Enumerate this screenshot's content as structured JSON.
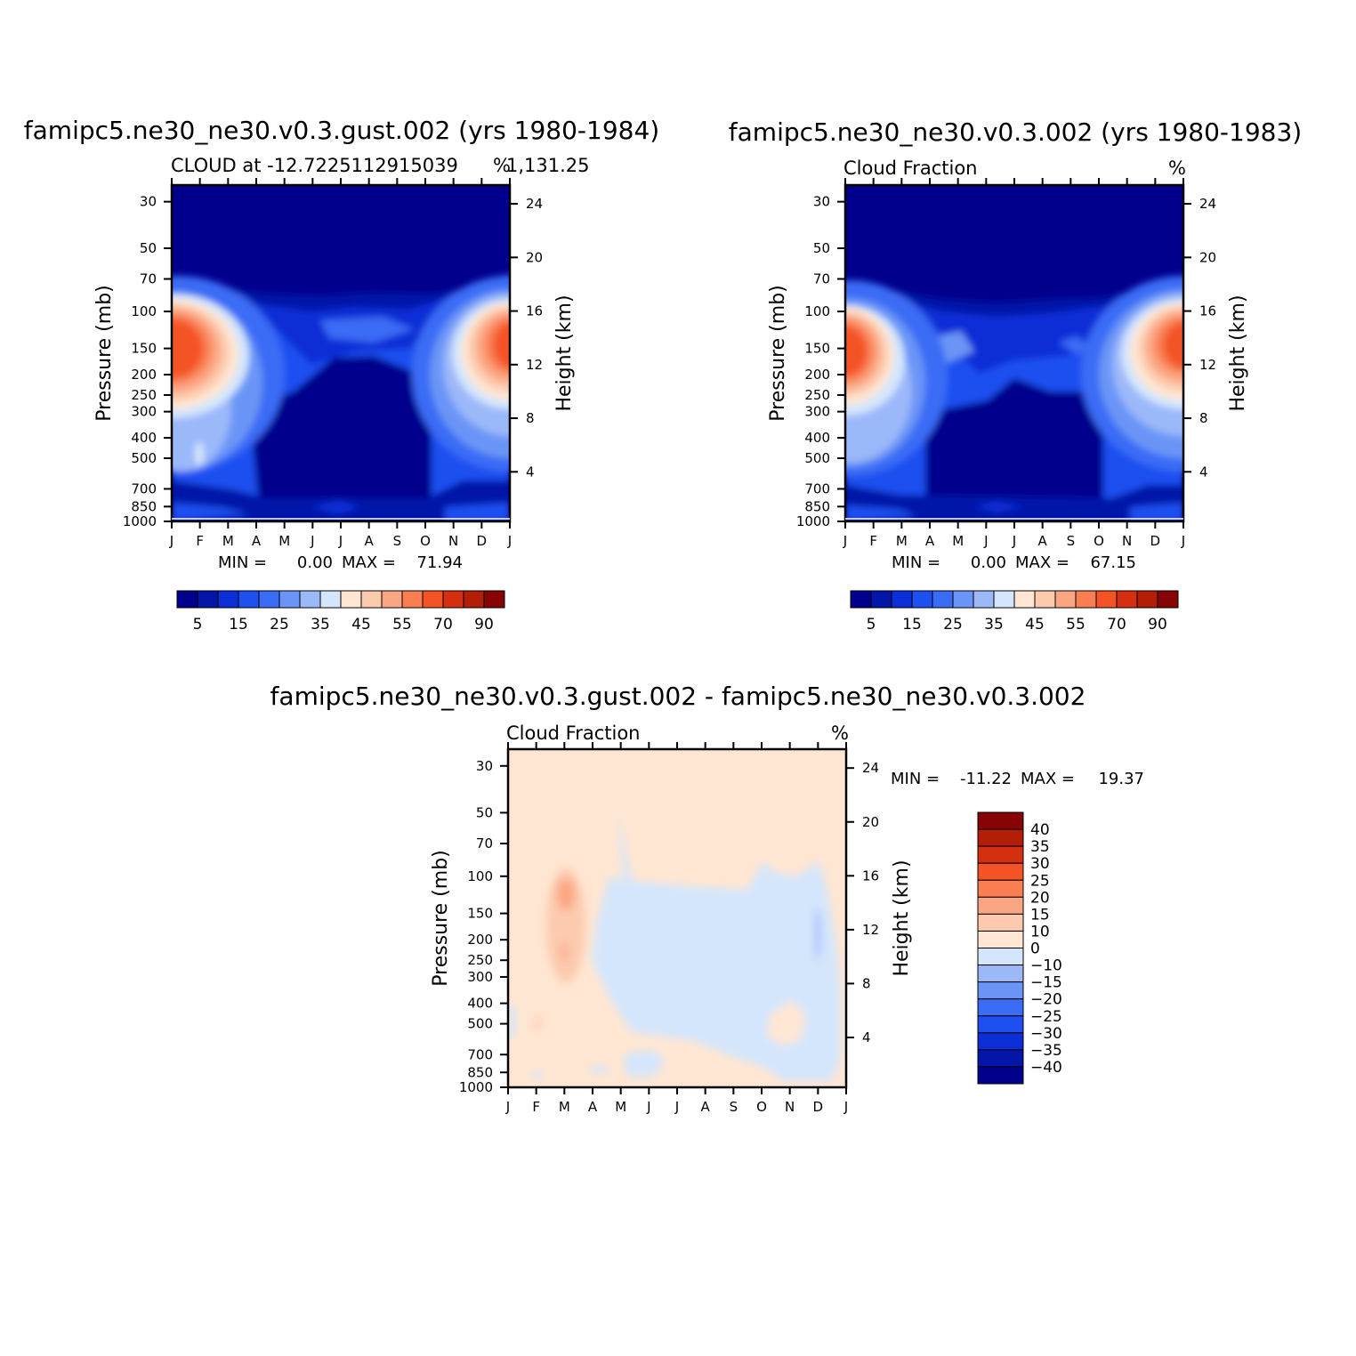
{
  "colors": {
    "cloud_levels": [
      "#00008c",
      "#0416a8",
      "#0b2ed6",
      "#1e4ff0",
      "#3a6cf5",
      "#6a95f7",
      "#9bb8f9",
      "#d4e6fc",
      "#ffe6d2",
      "#fccaae",
      "#fba682",
      "#f97f52",
      "#f45326",
      "#d42f0e",
      "#b21e06",
      "#860404"
    ],
    "diff_levels": [
      "#00008c",
      "#0416a8",
      "#0b2ed6",
      "#1e4ff0",
      "#3a6cf5",
      "#6a95f7",
      "#9bb8f9",
      "#d4e6fc",
      "#ffe6d2",
      "#fccaae",
      "#fba682",
      "#f97f52",
      "#f45326",
      "#d42f0e",
      "#b21e06",
      "#860404"
    ]
  },
  "chart_data": [
    {
      "type": "heatmap",
      "title": "famipc5.ne30_ne30.v0.3.gust.002 (yrs 1980-1984)",
      "subtitle_left": "CLOUD at -12.7225112915039",
      "subtitle_right": "%",
      "subtitle_extra": "1,131.25",
      "ylabel": "Pressure (mb)",
      "ylabel_right": "Height (km)",
      "x_ticks": [
        "J",
        "F",
        "M",
        "A",
        "M",
        "J",
        "J",
        "A",
        "S",
        "O",
        "N",
        "D",
        "J"
      ],
      "y_ticks": [
        "30",
        "50",
        "70",
        "100",
        "150",
        "200",
        "250",
        "300",
        "400",
        "500",
        "700",
        "850",
        "1000"
      ],
      "y_ticks_right": [
        "24",
        "20",
        "16",
        "12",
        "8",
        "4"
      ],
      "min_max": {
        "min_label": "MIN =",
        "min": "0.00",
        "max_label": "MAX =",
        "max": "71.94"
      },
      "colorbar_labels": [
        "5",
        "15",
        "25",
        "35",
        "45",
        "55",
        "70",
        "90"
      ],
      "levels": [
        0,
        5,
        10,
        15,
        20,
        25,
        30,
        35,
        40,
        45,
        50,
        55,
        60,
        70,
        80,
        90
      ]
    },
    {
      "type": "heatmap",
      "title": "famipc5.ne30_ne30.v0.3.002 (yrs 1980-1983)",
      "subtitle_left": "Cloud Fraction",
      "subtitle_right": "%",
      "ylabel": "Pressure (mb)",
      "ylabel_right": "Height (km)",
      "x_ticks": [
        "J",
        "F",
        "M",
        "A",
        "M",
        "J",
        "J",
        "A",
        "S",
        "O",
        "N",
        "D",
        "J"
      ],
      "y_ticks": [
        "30",
        "50",
        "70",
        "100",
        "150",
        "200",
        "250",
        "300",
        "400",
        "500",
        "700",
        "850",
        "1000"
      ],
      "y_ticks_right": [
        "24",
        "20",
        "16",
        "12",
        "8",
        "4"
      ],
      "min_max": {
        "min_label": "MIN =",
        "min": "0.00",
        "max_label": "MAX =",
        "max": "67.15"
      },
      "colorbar_labels": [
        "5",
        "15",
        "25",
        "35",
        "45",
        "55",
        "70",
        "90"
      ],
      "levels": [
        0,
        5,
        10,
        15,
        20,
        25,
        30,
        35,
        40,
        45,
        50,
        55,
        60,
        70,
        80,
        90
      ]
    },
    {
      "type": "heatmap",
      "title": "famipc5.ne30_ne30.v0.3.gust.002 - famipc5.ne30_ne30.v0.3.002",
      "subtitle_left": "Cloud Fraction",
      "subtitle_right": "%",
      "ylabel": "Pressure (mb)",
      "ylabel_right": "Height (km)",
      "x_ticks": [
        "J",
        "F",
        "M",
        "A",
        "M",
        "J",
        "J",
        "A",
        "S",
        "O",
        "N",
        "D",
        "J"
      ],
      "y_ticks": [
        "30",
        "50",
        "70",
        "100",
        "150",
        "200",
        "250",
        "300",
        "400",
        "500",
        "700",
        "850",
        "1000"
      ],
      "y_ticks_right": [
        "24",
        "20",
        "16",
        "12",
        "8",
        "4"
      ],
      "min_max": {
        "min_label": "MIN =",
        "min": "-11.22",
        "max_label": "MAX =",
        "max": "19.37"
      },
      "colorbar_labels": [
        "40",
        "35",
        "30",
        "25",
        "20",
        "15",
        "10",
        "0",
        "-10",
        "-15",
        "-20",
        "-25",
        "-30",
        "-35",
        "-40"
      ],
      "levels": [
        -40,
        -35,
        -30,
        -25,
        -20,
        -15,
        -10,
        0,
        10,
        15,
        20,
        25,
        30,
        35,
        40
      ]
    }
  ]
}
